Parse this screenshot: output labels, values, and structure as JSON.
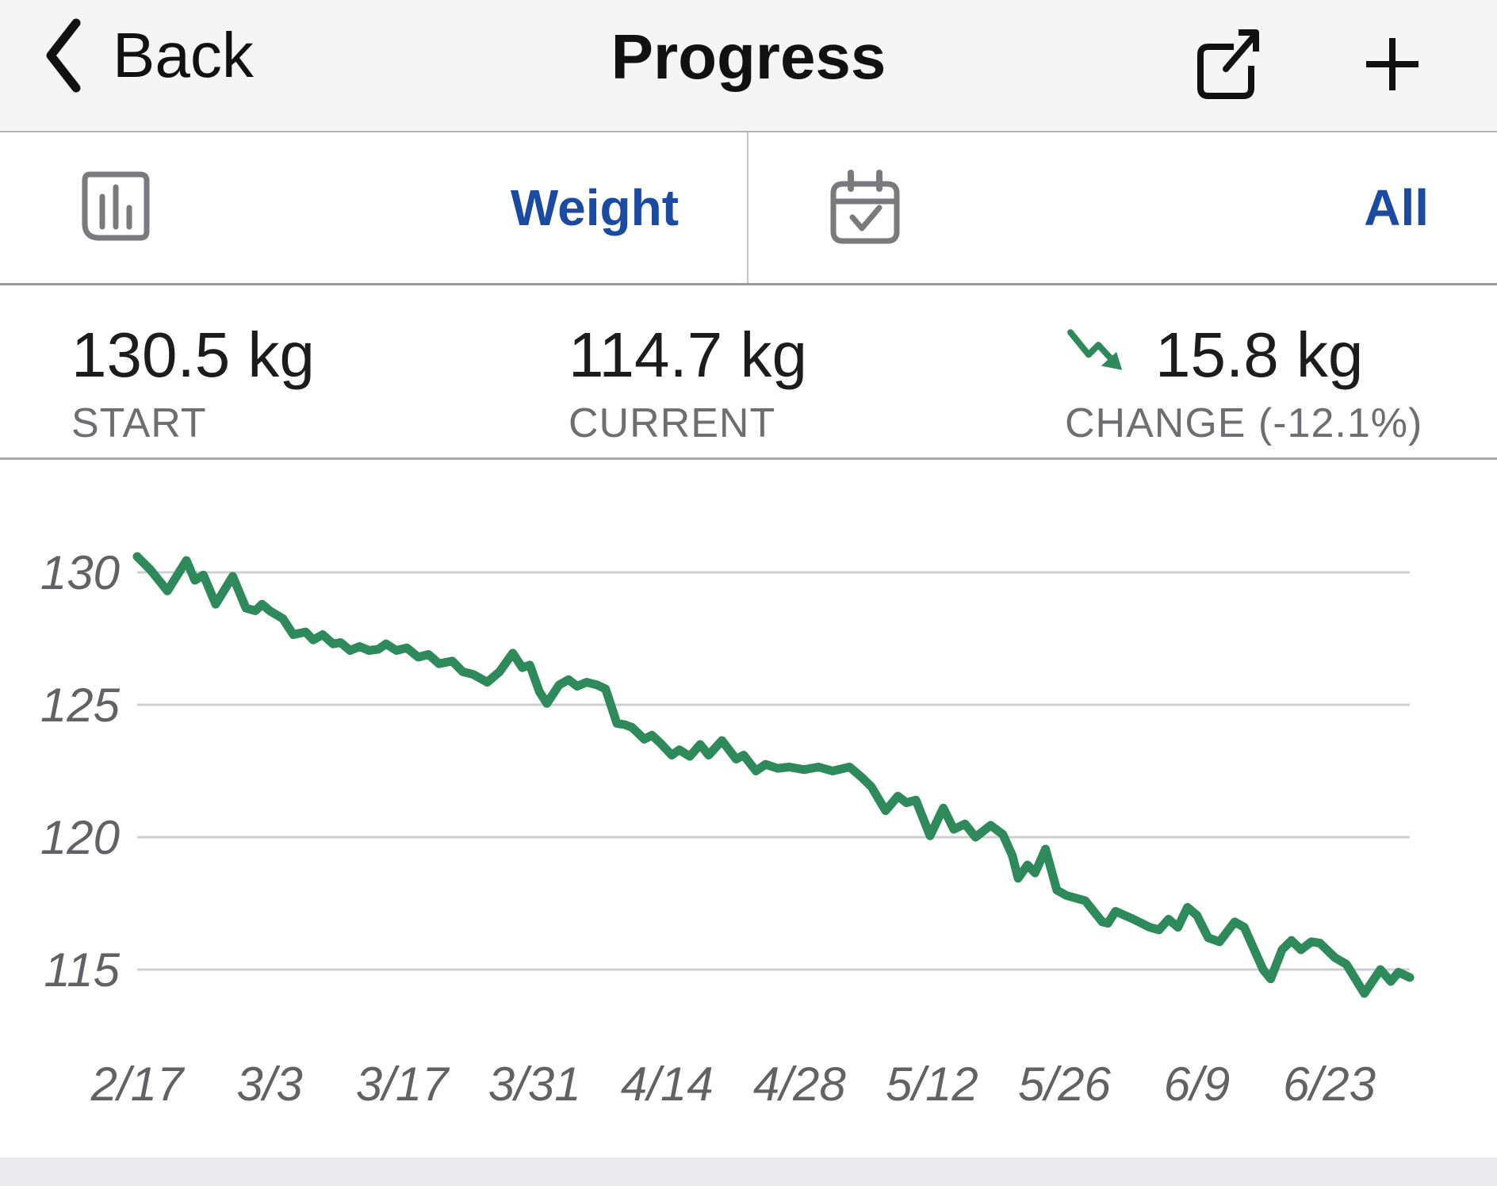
{
  "header": {
    "back_label": "Back",
    "title": "Progress"
  },
  "filters": {
    "metric_label": "Weight",
    "range_label": "All"
  },
  "stats": {
    "start": {
      "value": "130.5 kg",
      "label": "START"
    },
    "current": {
      "value": "114.7 kg",
      "label": "CURRENT"
    },
    "change": {
      "value": "15.8 kg",
      "label": "CHANGE (-12.1%)"
    }
  },
  "icons": {
    "back": "chevron-left-icon",
    "share": "share-export-icon",
    "add": "plus-icon",
    "metric": "bar-chart-icon",
    "range": "calendar-check-icon",
    "trend": "trending-down-arrow-icon"
  },
  "colors": {
    "accent_blue": "#1b4aa2",
    "line_green": "#2e8a5a",
    "text_primary": "#1c1c1e",
    "text_secondary": "#6d6d72",
    "header_bg": "#f5f5f6",
    "separator": "#a9a9ae",
    "footer_bg": "#eaeaee"
  },
  "chart_data": {
    "type": "line",
    "title": "Weight over time",
    "y_axis_unit": "kg",
    "y_ticks": [
      130,
      125,
      120,
      115
    ],
    "y_range": [
      113.5,
      131.5
    ],
    "x_tick_labels": [
      "2/17",
      "3/3",
      "3/17",
      "3/31",
      "4/14",
      "4/28",
      "5/12",
      "5/26",
      "6/9",
      "6/23"
    ],
    "x_tick_days": [
      0,
      14,
      28,
      42,
      56,
      70,
      84,
      98,
      112,
      126
    ],
    "x_range_days": [
      0,
      134.5
    ],
    "grid": true,
    "legend_position": "none",
    "points": [
      [
        0,
        130.6
      ],
      [
        1.4,
        130.1
      ],
      [
        3.2,
        129.3
      ],
      [
        5.2,
        130.45
      ],
      [
        6.1,
        129.7
      ],
      [
        7,
        129.9
      ],
      [
        8.3,
        128.8
      ],
      [
        10.1,
        129.85
      ],
      [
        11.5,
        128.65
      ],
      [
        12.5,
        128.55
      ],
      [
        13.2,
        128.8
      ],
      [
        14,
        128.55
      ],
      [
        15.4,
        128.25
      ],
      [
        16.5,
        127.65
      ],
      [
        17.8,
        127.75
      ],
      [
        18.6,
        127.45
      ],
      [
        19.6,
        127.65
      ],
      [
        20.7,
        127.3
      ],
      [
        21.5,
        127.35
      ],
      [
        22.5,
        127.05
      ],
      [
        23.5,
        127.2
      ],
      [
        24.5,
        127.05
      ],
      [
        25.5,
        127.1
      ],
      [
        26.3,
        127.3
      ],
      [
        27.4,
        127.05
      ],
      [
        28.5,
        127.15
      ],
      [
        29.7,
        126.8
      ],
      [
        30.8,
        126.9
      ],
      [
        31.9,
        126.55
      ],
      [
        33.3,
        126.65
      ],
      [
        34.4,
        126.25
      ],
      [
        35.5,
        126.15
      ],
      [
        37,
        125.85
      ],
      [
        38.3,
        126.25
      ],
      [
        39.7,
        126.95
      ],
      [
        40.7,
        126.4
      ],
      [
        41.5,
        126.5
      ],
      [
        42.5,
        125.5
      ],
      [
        43.3,
        125.05
      ],
      [
        44.6,
        125.75
      ],
      [
        45.6,
        125.95
      ],
      [
        46.5,
        125.7
      ],
      [
        47.5,
        125.85
      ],
      [
        48.6,
        125.75
      ],
      [
        49.5,
        125.6
      ],
      [
        50.2,
        124.85
      ],
      [
        50.7,
        124.3
      ],
      [
        51.5,
        124.25
      ],
      [
        52.3,
        124.15
      ],
      [
        53.6,
        123.7
      ],
      [
        54.4,
        123.85
      ],
      [
        55.3,
        123.55
      ],
      [
        56.5,
        123.1
      ],
      [
        57.3,
        123.3
      ],
      [
        58.4,
        123.05
      ],
      [
        59.5,
        123.5
      ],
      [
        60.4,
        123.1
      ],
      [
        61.8,
        123.65
      ],
      [
        63.3,
        122.95
      ],
      [
        64.1,
        123.1
      ],
      [
        65.4,
        122.5
      ],
      [
        66.4,
        122.75
      ],
      [
        67.7,
        122.6
      ],
      [
        68.9,
        122.65
      ],
      [
        70.5,
        122.55
      ],
      [
        72,
        122.65
      ],
      [
        73.5,
        122.5
      ],
      [
        75.3,
        122.65
      ],
      [
        76.6,
        122.25
      ],
      [
        77.6,
        121.9
      ],
      [
        79.1,
        121.0
      ],
      [
        80.4,
        121.55
      ],
      [
        81.3,
        121.3
      ],
      [
        82.3,
        121.4
      ],
      [
        83.8,
        120.05
      ],
      [
        85.2,
        121.1
      ],
      [
        86.3,
        120.3
      ],
      [
        87.5,
        120.5
      ],
      [
        88.6,
        120.0
      ],
      [
        90.2,
        120.45
      ],
      [
        91.5,
        120.1
      ],
      [
        92.5,
        119.3
      ],
      [
        93.1,
        118.45
      ],
      [
        94.1,
        118.95
      ],
      [
        94.9,
        118.65
      ],
      [
        96,
        119.55
      ],
      [
        97.2,
        118.0
      ],
      [
        98.2,
        117.8
      ],
      [
        100.2,
        117.6
      ],
      [
        102,
        116.8
      ],
      [
        102.6,
        116.75
      ],
      [
        103.4,
        117.2
      ],
      [
        105.3,
        116.9
      ],
      [
        107,
        116.6
      ],
      [
        108,
        116.5
      ],
      [
        109,
        116.9
      ],
      [
        110,
        116.6
      ],
      [
        111,
        117.35
      ],
      [
        112,
        117.05
      ],
      [
        113.2,
        116.2
      ],
      [
        114.4,
        116.05
      ],
      [
        116,
        116.8
      ],
      [
        117,
        116.6
      ],
      [
        119,
        115.0
      ],
      [
        119.8,
        114.65
      ],
      [
        121,
        115.75
      ],
      [
        122,
        116.1
      ],
      [
        123,
        115.75
      ],
      [
        124.1,
        116.05
      ],
      [
        125,
        116.0
      ],
      [
        126.6,
        115.45
      ],
      [
        127.8,
        115.2
      ],
      [
        129.7,
        114.1
      ],
      [
        131.4,
        115.0
      ],
      [
        132.5,
        114.55
      ],
      [
        133.3,
        114.9
      ],
      [
        134.5,
        114.7
      ]
    ]
  }
}
